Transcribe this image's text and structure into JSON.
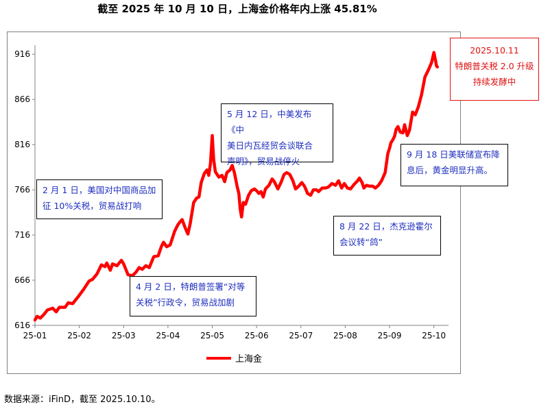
{
  "title": "截至 2025 年 10 月 10 日，上海金价格年内上涨 45.81%",
  "footer": "数据来源：iFinD，截至 2025.10.10。",
  "chart_data": {
    "type": "line",
    "y_ticks": [
      616,
      666,
      716,
      766,
      816,
      866,
      916
    ],
    "ylim": [
      616,
      926
    ],
    "x_tick_labels": [
      "25-01",
      "25-02",
      "25-03",
      "25-04",
      "25-05",
      "25-06",
      "25-07",
      "25-08",
      "25-09",
      "25-10"
    ],
    "x_range_months": [
      0,
      9.33
    ],
    "legend": "bottom-center",
    "grid": false,
    "series": [
      {
        "name": "上海金",
        "color": "#ff0000",
        "points": [
          [
            0.0,
            622
          ],
          [
            0.05,
            626
          ],
          [
            0.12,
            624
          ],
          [
            0.2,
            628
          ],
          [
            0.28,
            633
          ],
          [
            0.4,
            635
          ],
          [
            0.48,
            631
          ],
          [
            0.55,
            636
          ],
          [
            0.68,
            636
          ],
          [
            0.75,
            641
          ],
          [
            0.85,
            640
          ],
          [
            0.98,
            648
          ],
          [
            1.1,
            656
          ],
          [
            1.22,
            665
          ],
          [
            1.3,
            667
          ],
          [
            1.4,
            673
          ],
          [
            1.5,
            683
          ],
          [
            1.58,
            681
          ],
          [
            1.62,
            685
          ],
          [
            1.7,
            677
          ],
          [
            1.75,
            684
          ],
          [
            1.85,
            682
          ],
          [
            1.95,
            688
          ],
          [
            2.0,
            684
          ],
          [
            2.05,
            678
          ],
          [
            2.1,
            672
          ],
          [
            2.2,
            671
          ],
          [
            2.28,
            675
          ],
          [
            2.35,
            680
          ],
          [
            2.42,
            678
          ],
          [
            2.5,
            682
          ],
          [
            2.58,
            680
          ],
          [
            2.68,
            692
          ],
          [
            2.78,
            693
          ],
          [
            2.85,
            703
          ],
          [
            2.9,
            708
          ],
          [
            2.97,
            703
          ],
          [
            3.05,
            705
          ],
          [
            3.15,
            720
          ],
          [
            3.22,
            727
          ],
          [
            3.28,
            731
          ],
          [
            3.32,
            733
          ],
          [
            3.38,
            725
          ],
          [
            3.45,
            717
          ],
          [
            3.5,
            728
          ],
          [
            3.58,
            752
          ],
          [
            3.65,
            757
          ],
          [
            3.7,
            758
          ],
          [
            3.75,
            774
          ],
          [
            3.82,
            784
          ],
          [
            3.88,
            788
          ],
          [
            3.92,
            782
          ],
          [
            3.96,
            795
          ],
          [
            4.0,
            826
          ],
          [
            4.03,
            800
          ],
          [
            4.07,
            786
          ],
          [
            4.15,
            780
          ],
          [
            4.22,
            782
          ],
          [
            4.28,
            775
          ],
          [
            4.33,
            785
          ],
          [
            4.4,
            788
          ],
          [
            4.45,
            793
          ],
          [
            4.5,
            785
          ],
          [
            4.56,
            770
          ],
          [
            4.6,
            762
          ],
          [
            4.63,
            745
          ],
          [
            4.66,
            736
          ],
          [
            4.7,
            752
          ],
          [
            4.75,
            750
          ],
          [
            4.82,
            760
          ],
          [
            4.88,
            765
          ],
          [
            4.95,
            767
          ],
          [
            5.0,
            765
          ],
          [
            5.05,
            762
          ],
          [
            5.1,
            764
          ],
          [
            5.15,
            758
          ],
          [
            5.2,
            767
          ],
          [
            5.28,
            771
          ],
          [
            5.35,
            778
          ],
          [
            5.4,
            775
          ],
          [
            5.48,
            767
          ],
          [
            5.55,
            774
          ],
          [
            5.62,
            783
          ],
          [
            5.68,
            785
          ],
          [
            5.75,
            783
          ],
          [
            5.82,
            776
          ],
          [
            5.88,
            767
          ],
          [
            5.95,
            770
          ],
          [
            6.02,
            774
          ],
          [
            6.08,
            770
          ],
          [
            6.15,
            762
          ],
          [
            6.22,
            760
          ],
          [
            6.28,
            766
          ],
          [
            6.35,
            766
          ],
          [
            6.4,
            764
          ],
          [
            6.48,
            768
          ],
          [
            6.55,
            768
          ],
          [
            6.62,
            769
          ],
          [
            6.7,
            773
          ],
          [
            6.78,
            771
          ],
          [
            6.85,
            776
          ],
          [
            6.92,
            768
          ],
          [
            6.98,
            773
          ],
          [
            7.05,
            768
          ],
          [
            7.12,
            767
          ],
          [
            7.2,
            772
          ],
          [
            7.28,
            776
          ],
          [
            7.32,
            779
          ],
          [
            7.38,
            774
          ],
          [
            7.42,
            768
          ],
          [
            7.48,
            771
          ],
          [
            7.55,
            770
          ],
          [
            7.62,
            770
          ],
          [
            7.68,
            768
          ],
          [
            7.75,
            771
          ],
          [
            7.82,
            776
          ],
          [
            7.9,
            785
          ],
          [
            7.96,
            806
          ],
          [
            8.0,
            812
          ],
          [
            8.03,
            818
          ],
          [
            8.07,
            821
          ],
          [
            8.11,
            825
          ],
          [
            8.15,
            833
          ],
          [
            8.19,
            836
          ],
          [
            8.24,
            830
          ],
          [
            8.3,
            829
          ],
          [
            8.34,
            838
          ],
          [
            8.4,
            826
          ],
          [
            8.45,
            832
          ],
          [
            8.52,
            852
          ],
          [
            8.58,
            849
          ],
          [
            8.65,
            858
          ],
          [
            8.72,
            871
          ],
          [
            8.8,
            891
          ],
          [
            8.88,
            899
          ],
          [
            8.95,
            907
          ],
          [
            9.0,
            918
          ],
          [
            9.04,
            908
          ],
          [
            9.06,
            903
          ],
          [
            9.08,
            902
          ]
        ]
      }
    ],
    "annotations": [
      {
        "id": "feb1",
        "lines": [
          "2 月 1 日，美国对中国商品加",
          "征 10%关税，贸易战打响"
        ]
      },
      {
        "id": "apr2",
        "lines": [
          "4 月 2 日，特朗普签署“对等",
          "关税”行政令，贸易战加剧"
        ]
      },
      {
        "id": "may12",
        "lines": [
          "5 月 12 日，中美发布《中",
          "美日内瓦经贸会谈联合",
          "声明》，贸易战停火"
        ]
      },
      {
        "id": "aug22",
        "lines": [
          "8 月 22 日，杰克逊霍尔",
          "会议转“鸽”"
        ]
      },
      {
        "id": "sep18",
        "lines": [
          "9 月 18 日美联储宣布降",
          "息后，黄金明显升高。"
        ]
      },
      {
        "id": "oct11",
        "lines": [
          "2025.10.11",
          "特朗普关税 2.0 升级",
          "持续发酵中"
        ]
      }
    ]
  }
}
